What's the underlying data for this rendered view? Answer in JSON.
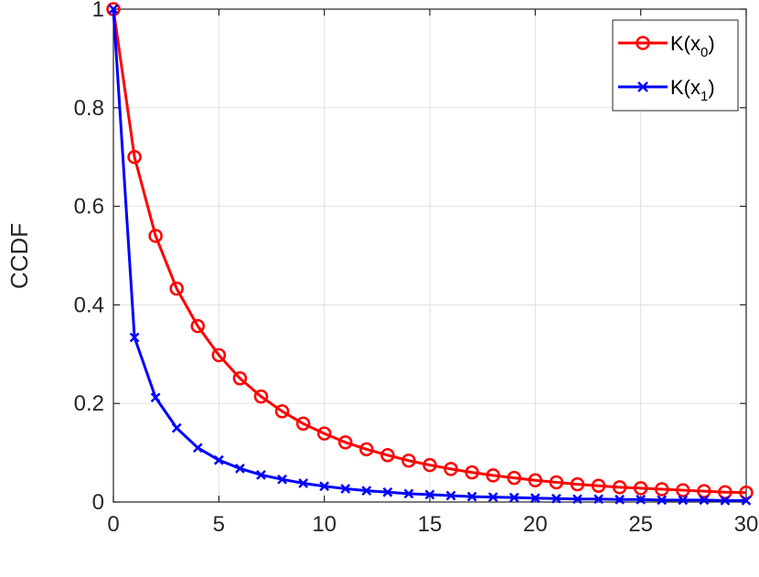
{
  "chart_data": {
    "type": "line",
    "xlabel": "",
    "ylabel": "CCDF",
    "xlim": [
      0,
      30
    ],
    "ylim": [
      0,
      1
    ],
    "x_ticks": [
      "0",
      "5",
      "10",
      "15",
      "20",
      "25",
      "30"
    ],
    "y_ticks": [
      "0",
      "0.2",
      "0.4",
      "0.6",
      "0.8",
      "1"
    ],
    "grid": true,
    "legend_position": "top-right",
    "x": [
      0,
      1,
      2,
      3,
      4,
      5,
      6,
      7,
      8,
      9,
      10,
      11,
      12,
      13,
      14,
      15,
      16,
      17,
      18,
      19,
      20,
      21,
      22,
      23,
      24,
      25,
      26,
      27,
      28,
      29,
      30
    ],
    "series": [
      {
        "name": "K(x0)",
        "name_main": "K(x",
        "name_sub": "0",
        "name_close": ")",
        "color": "#ff0000",
        "marker": "circle",
        "values": [
          1.0,
          0.7,
          0.54,
          0.433,
          0.357,
          0.298,
          0.251,
          0.214,
          0.184,
          0.159,
          0.139,
          0.121,
          0.107,
          0.095,
          0.084,
          0.075,
          0.067,
          0.06,
          0.054,
          0.049,
          0.044,
          0.04,
          0.036,
          0.033,
          0.03,
          0.028,
          0.026,
          0.024,
          0.022,
          0.02,
          0.019
        ]
      },
      {
        "name": "K(x1)",
        "name_main": "K(x",
        "name_sub": "1",
        "name_close": ")",
        "color": "#0000ff",
        "marker": "x",
        "values": [
          1.0,
          0.334,
          0.212,
          0.15,
          0.11,
          0.085,
          0.068,
          0.055,
          0.046,
          0.038,
          0.032,
          0.027,
          0.023,
          0.02,
          0.017,
          0.015,
          0.013,
          0.011,
          0.01,
          0.009,
          0.008,
          0.007,
          0.006,
          0.006,
          0.005,
          0.005,
          0.004,
          0.004,
          0.004,
          0.003,
          0.003
        ]
      }
    ]
  }
}
